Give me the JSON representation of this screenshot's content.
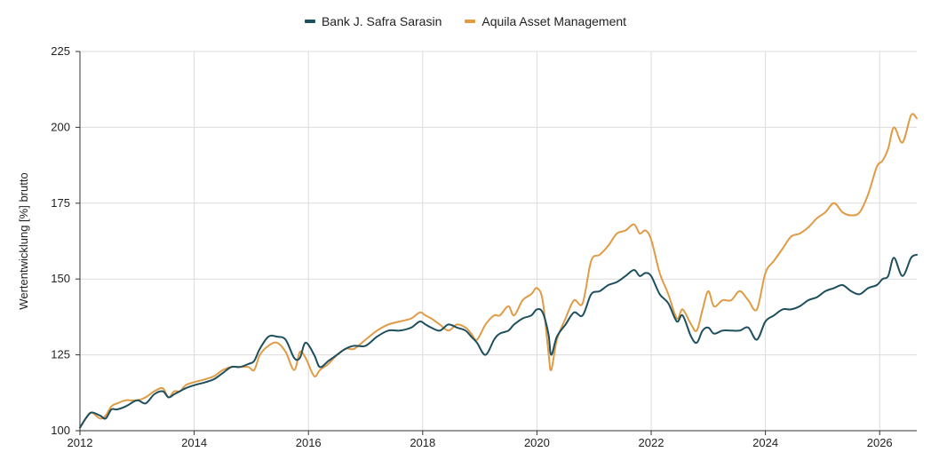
{
  "chart_data": {
    "type": "line",
    "title": "",
    "xlabel": "",
    "ylabel": "Wertentwicklung [%] brutto",
    "xlim": [
      2012,
      2026.65
    ],
    "ylim": [
      100,
      225
    ],
    "x_ticks": [
      2012,
      2014,
      2016,
      2018,
      2020,
      2022,
      2024,
      2026
    ],
    "x_tick_labels": [
      "2012",
      "2014",
      "2016",
      "2018",
      "2020",
      "2022",
      "2024",
      "2026"
    ],
    "y_ticks": [
      100,
      125,
      150,
      175,
      200,
      225
    ],
    "y_tick_labels": [
      "100",
      "125",
      "150",
      "175",
      "200",
      "225"
    ],
    "grid": true,
    "legend_position": "top-center",
    "series": [
      {
        "name": "Bank J. Safra Sarasin",
        "color": "#1d4f5f",
        "x": [
          2012.0,
          2012.1,
          2012.2,
          2012.35,
          2012.45,
          2012.55,
          2012.65,
          2012.8,
          2013.0,
          2013.15,
          2013.3,
          2013.45,
          2013.55,
          2013.65,
          2013.75,
          2013.85,
          2014.0,
          2014.2,
          2014.35,
          2014.5,
          2014.65,
          2014.8,
          2014.95,
          2015.05,
          2015.15,
          2015.3,
          2015.45,
          2015.6,
          2015.75,
          2015.85,
          2015.95,
          2016.1,
          2016.2,
          2016.35,
          2016.5,
          2016.65,
          2016.8,
          2017.0,
          2017.2,
          2017.4,
          2017.6,
          2017.8,
          2017.95,
          2018.05,
          2018.15,
          2018.3,
          2018.45,
          2018.6,
          2018.75,
          2018.85,
          2018.95,
          2019.1,
          2019.25,
          2019.35,
          2019.5,
          2019.6,
          2019.75,
          2019.9,
          2020.0,
          2020.1,
          2020.2,
          2020.25,
          2020.35,
          2020.5,
          2020.65,
          2020.8,
          2020.95,
          2021.1,
          2021.25,
          2021.4,
          2021.55,
          2021.7,
          2021.8,
          2021.9,
          2022.0,
          2022.15,
          2022.3,
          2022.45,
          2022.55,
          2022.7,
          2022.8,
          2022.9,
          2023.0,
          2023.1,
          2023.25,
          2023.4,
          2023.55,
          2023.7,
          2023.85,
          2024.0,
          2024.15,
          2024.3,
          2024.45,
          2024.6,
          2024.75,
          2024.9,
          2025.05,
          2025.2,
          2025.35,
          2025.5,
          2025.65,
          2025.8,
          2025.95,
          2026.05,
          2026.15,
          2026.25,
          2026.4,
          2026.55,
          2026.65
        ],
        "y": [
          101,
          104,
          106,
          105,
          104,
          107,
          107,
          108,
          110,
          109,
          112,
          113,
          111,
          112,
          113,
          114,
          115,
          116,
          117,
          119,
          121,
          121,
          122,
          123,
          127,
          131,
          131,
          130,
          124,
          124,
          129,
          125,
          121,
          123,
          125,
          127,
          128,
          128,
          131,
          133,
          133,
          134,
          136,
          135,
          134,
          133,
          135,
          134,
          133,
          131,
          129,
          125,
          130,
          132,
          133,
          135,
          137,
          138,
          140,
          139,
          132,
          125,
          131,
          135,
          139,
          138,
          145,
          146,
          148,
          149,
          151,
          153,
          151,
          152,
          151,
          145,
          142,
          136,
          138,
          131,
          129,
          133,
          134,
          132,
          133,
          133,
          133,
          134,
          130,
          136,
          138,
          140,
          140,
          141,
          143,
          144,
          146,
          147,
          148,
          146,
          145,
          147,
          148,
          150,
          151,
          157,
          151,
          157,
          158
        ]
      },
      {
        "name": "Aquila Asset Management",
        "color": "#e09b45",
        "x": [
          2012.0,
          2012.1,
          2012.2,
          2012.35,
          2012.45,
          2012.55,
          2012.65,
          2012.8,
          2013.0,
          2013.15,
          2013.3,
          2013.45,
          2013.55,
          2013.65,
          2013.75,
          2013.85,
          2014.0,
          2014.2,
          2014.35,
          2014.5,
          2014.65,
          2014.8,
          2014.95,
          2015.05,
          2015.15,
          2015.3,
          2015.45,
          2015.6,
          2015.75,
          2015.85,
          2015.95,
          2016.1,
          2016.2,
          2016.35,
          2016.5,
          2016.65,
          2016.8,
          2017.0,
          2017.2,
          2017.4,
          2017.6,
          2017.8,
          2017.95,
          2018.05,
          2018.15,
          2018.3,
          2018.45,
          2018.6,
          2018.75,
          2018.85,
          2018.95,
          2019.1,
          2019.25,
          2019.35,
          2019.5,
          2019.6,
          2019.75,
          2019.9,
          2020.0,
          2020.1,
          2020.2,
          2020.25,
          2020.35,
          2020.5,
          2020.65,
          2020.8,
          2020.95,
          2021.1,
          2021.25,
          2021.4,
          2021.55,
          2021.7,
          2021.8,
          2021.9,
          2022.0,
          2022.15,
          2022.3,
          2022.45,
          2022.55,
          2022.7,
          2022.8,
          2022.9,
          2023.0,
          2023.1,
          2023.25,
          2023.4,
          2023.55,
          2023.7,
          2023.85,
          2024.0,
          2024.15,
          2024.3,
          2024.45,
          2024.6,
          2024.75,
          2024.9,
          2025.05,
          2025.2,
          2025.35,
          2025.5,
          2025.65,
          2025.8,
          2025.95,
          2026.05,
          2026.15,
          2026.25,
          2026.4,
          2026.55,
          2026.65
        ],
        "y": [
          101,
          104,
          106,
          104,
          105,
          108,
          109,
          110,
          110,
          111,
          113,
          114,
          111,
          113,
          113,
          115,
          116,
          117,
          118,
          120,
          121,
          121,
          121,
          120,
          125,
          128,
          129,
          126,
          120,
          126,
          124,
          118,
          120,
          122,
          125,
          127,
          127,
          130,
          133,
          135,
          136,
          137,
          139,
          138,
          137,
          135,
          133,
          135,
          134,
          132,
          130,
          135,
          138,
          138,
          141,
          138,
          143,
          145,
          147,
          143,
          126,
          120,
          130,
          137,
          143,
          142,
          156,
          158,
          161,
          165,
          166,
          168,
          165,
          166,
          163,
          152,
          145,
          137,
          140,
          135,
          133,
          140,
          146,
          141,
          143,
          143,
          146,
          143,
          140,
          152,
          156,
          160,
          164,
          165,
          167,
          170,
          172,
          175,
          172,
          171,
          172,
          178,
          187,
          189,
          193,
          200,
          195,
          204,
          203
        ]
      }
    ]
  }
}
